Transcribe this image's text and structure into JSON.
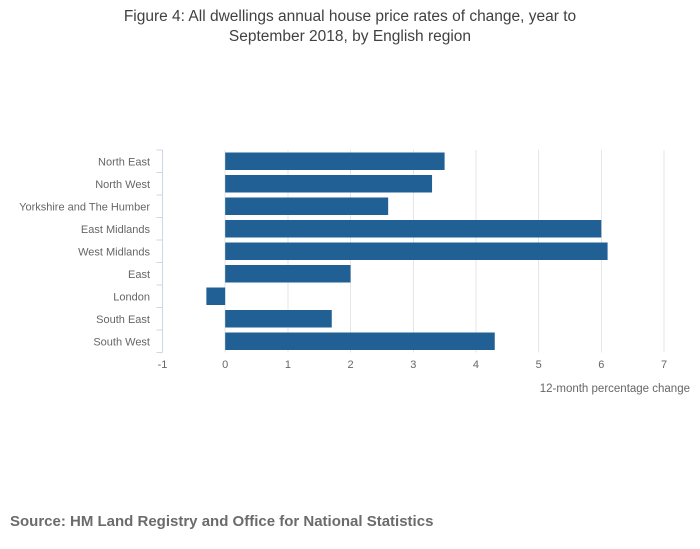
{
  "page": {
    "background": "#ffffff"
  },
  "chart_data": {
    "type": "bar",
    "orientation": "horizontal",
    "title": "Figure 4: All dwellings annual house price rates of change, year to September 2018, by English region",
    "title_lines": [
      "Figure 4: All dwellings annual house price rates of change, year to",
      "September 2018, by English region"
    ],
    "categories": [
      "North East",
      "North West",
      "Yorkshire and The Humber",
      "East Midlands",
      "West Midlands",
      "East",
      "London",
      "South East",
      "South West"
    ],
    "values": [
      3.5,
      3.3,
      2.6,
      6.0,
      6.1,
      2.0,
      -0.3,
      1.7,
      4.3
    ],
    "xlabel": "12-month percentage change",
    "xlim": [
      -1,
      7
    ],
    "xticks": [
      -1,
      0,
      1,
      2,
      3,
      4,
      5,
      6,
      7
    ],
    "grid": true,
    "legend": "none",
    "bar_color": "#206095",
    "colors": {
      "axis_line": "#ccd6eb",
      "gridline": "#e6e6e6",
      "labels": "#666666",
      "title": "#414042",
      "source": "#6b6b6b"
    },
    "source": "Source: HM Land Registry and Office for National Statistics"
  }
}
